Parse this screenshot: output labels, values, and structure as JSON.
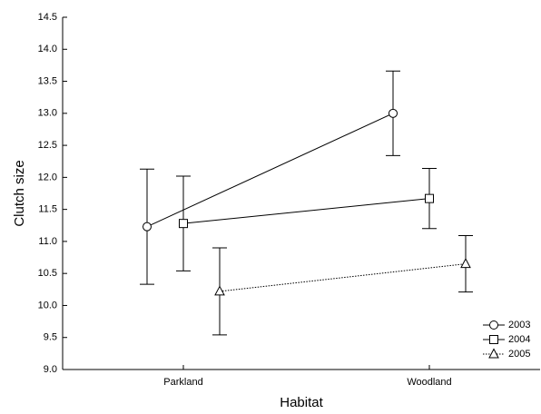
{
  "chart_data": {
    "type": "errorbar-line",
    "x_label": "Habitat",
    "y_label": "Clutch size",
    "categories": [
      "Parkland",
      "Woodland"
    ],
    "series": [
      {
        "name": "2003",
        "color": "#000000",
        "marker": "circle",
        "line_style": "solid",
        "values": [
          11.23,
          13.0
        ],
        "errors": [
          0.9,
          0.66
        ]
      },
      {
        "name": "2004",
        "color": "#000000",
        "marker": "square",
        "line_style": "solid",
        "values": [
          11.28,
          11.67
        ],
        "errors": [
          0.74,
          0.47
        ]
      },
      {
        "name": "2005",
        "color": "#000000",
        "marker": "triangle",
        "line_style": "dotted",
        "values": [
          10.22,
          10.65
        ],
        "errors": [
          0.68,
          0.44
        ]
      }
    ],
    "ylim": [
      9,
      14.5
    ],
    "yticks": [
      {
        "value": 9,
        "label": "9.0"
      },
      9.5,
      {
        "value": 10,
        "label": "10.0"
      },
      10.5,
      {
        "value": 11,
        "label": "11.0"
      },
      11.5,
      {
        "value": 12,
        "label": "12.0"
      },
      12.5,
      {
        "value": 13,
        "label": "13.0"
      },
      13.5,
      {
        "value": 14,
        "label": "14.0"
      },
      14.5
    ],
    "grid": false,
    "legend": "lower right"
  }
}
